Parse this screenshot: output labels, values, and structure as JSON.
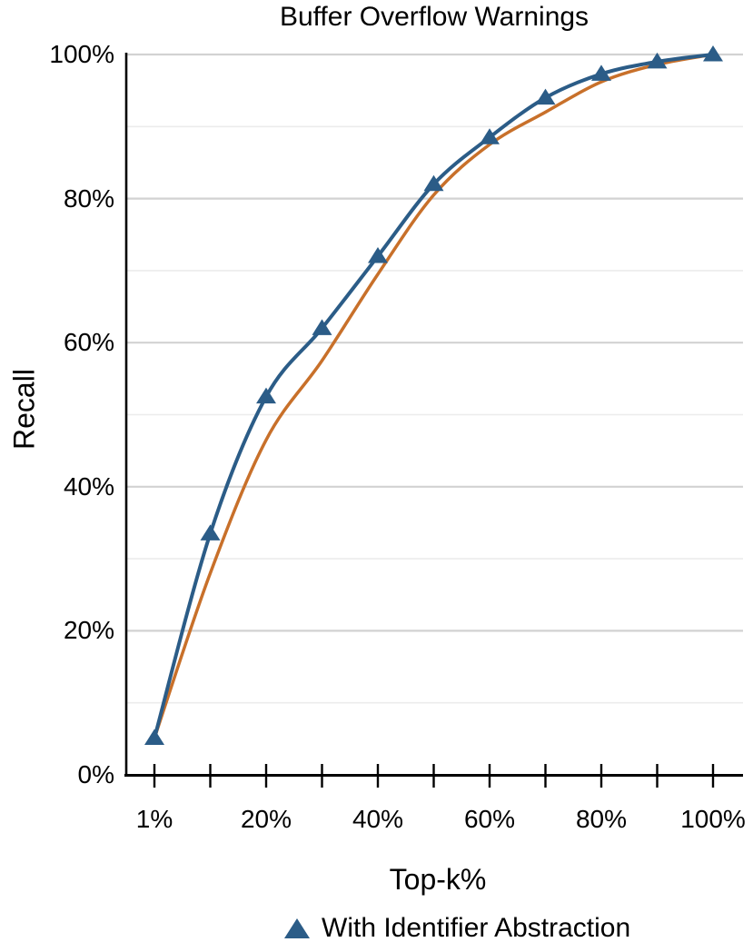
{
  "title": "Buffer Overflow Warnings",
  "colors": {
    "series_blue": "#2b5c87",
    "series_orange": "#c8702a",
    "axis": "#000000",
    "grid_major": "#d2d2d2",
    "grid_minor": "#ececec",
    "text": "#000000"
  },
  "chart_data": {
    "type": "line",
    "title": "Buffer Overflow Warnings",
    "xlabel": "Top-k%",
    "ylabel": "Recall",
    "x": [
      1,
      10,
      20,
      30,
      40,
      50,
      60,
      70,
      80,
      90,
      100
    ],
    "x_tick_labels": [
      "1%",
      "",
      "20%",
      "",
      "40%",
      "",
      "60%",
      "",
      "80%",
      "",
      "100%"
    ],
    "y_tick_values": [
      0,
      20,
      40,
      60,
      80,
      100
    ],
    "y_tick_labels": [
      "0%",
      "20%",
      "40%",
      "60%",
      "80%",
      "100%"
    ],
    "ylim": [
      0,
      100
    ],
    "grid": "horizontal gridlines every 10%, darker at labeled 20% steps",
    "legend_position": "bottom-center",
    "series": [
      {
        "name": "With Identifier Abstraction",
        "color": "#2b5c87",
        "marker": "triangle-up",
        "in_legend": true,
        "values": [
          5.1,
          33.5,
          52.5,
          62,
          72,
          82,
          88.5,
          94,
          97.3,
          99,
          100
        ]
      },
      {
        "name": "",
        "color": "#c8702a",
        "marker": "none",
        "in_legend": false,
        "values": [
          5.1,
          28,
          46.5,
          57.5,
          69.5,
          80.5,
          87.5,
          92,
          96.2,
          98.6,
          100
        ]
      }
    ]
  },
  "legend": {
    "items": [
      {
        "label": "With Identifier Abstraction",
        "marker": "triangle-up",
        "color": "#2b5c87"
      }
    ]
  }
}
